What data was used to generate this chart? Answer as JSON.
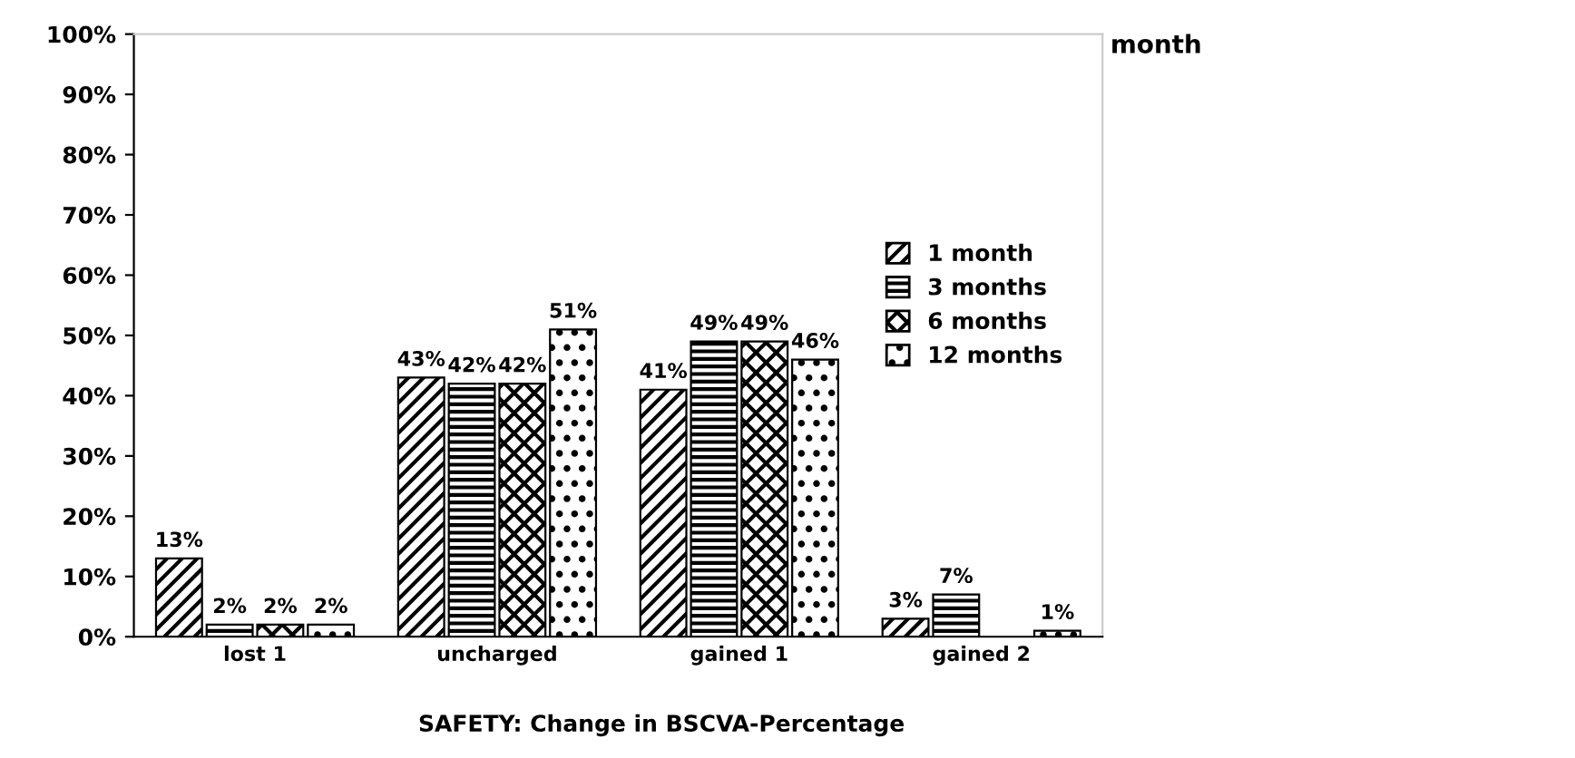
{
  "chart_data": {
    "type": "bar",
    "title": "SAFETY: Change in BSCVA-Percentage",
    "categories": [
      "lost 1",
      "uncharged",
      "gained 1",
      "gained 2"
    ],
    "series": [
      {
        "name": "1 month",
        "color": "#000000",
        "values": [
          13,
          43,
          41,
          3
        ],
        "value_labels": [
          "13%",
          "43%",
          "41%",
          "3%"
        ]
      },
      {
        "name": "3 months",
        "color": "#000000",
        "values": [
          2,
          42,
          49,
          7
        ],
        "value_labels": [
          "2%",
          "42%",
          "49%",
          "7%"
        ]
      },
      {
        "name": "6 months",
        "color": "#000000",
        "values": [
          2,
          42,
          49,
          null
        ],
        "value_labels": [
          "2%",
          "42%",
          "49%",
          null
        ]
      },
      {
        "name": "12 months",
        "color": "#000000",
        "values": [
          2,
          51,
          46,
          1
        ],
        "value_labels": [
          "2%",
          "51%",
          "46%",
          "1%"
        ]
      }
    ],
    "ylim": [
      0,
      100
    ],
    "yticks": [
      {
        "value": 0,
        "label": "0%"
      },
      {
        "value": 10,
        "label": "10%"
      },
      {
        "value": 20,
        "label": "20%"
      },
      {
        "value": 30,
        "label": "30%"
      },
      {
        "value": 40,
        "label": "40%"
      },
      {
        "value": 50,
        "label": "50%"
      },
      {
        "value": 60,
        "label": "60%"
      },
      {
        "value": 70,
        "label": "70%"
      },
      {
        "value": 80,
        "label": "80%"
      },
      {
        "value": 90,
        "label": "90%"
      },
      {
        "value": 100,
        "label": "100%"
      }
    ],
    "legend": "right",
    "grid": false,
    "annotations": [
      "month"
    ]
  }
}
